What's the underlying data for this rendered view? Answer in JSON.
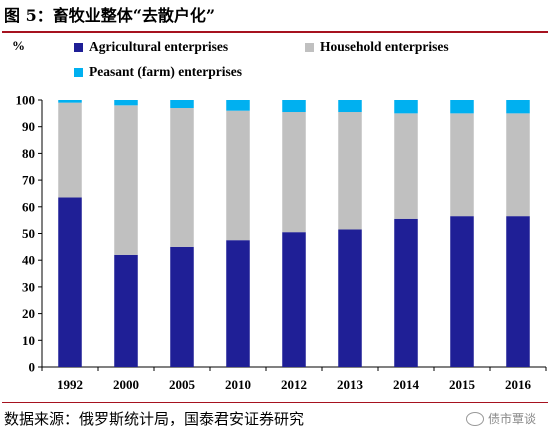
{
  "figure_title": "图 5：畜牧业整体“去散户化”",
  "source_note": "数据来源：俄罗斯统计局，国泰君安证券研究",
  "watermark": "债市覃谈",
  "chart_data": {
    "type": "bar",
    "stacked": true,
    "ylabel": "%",
    "ylim": [
      0,
      100
    ],
    "yticks": [
      0,
      10,
      20,
      30,
      40,
      50,
      60,
      70,
      80,
      90,
      100
    ],
    "categories": [
      "1992",
      "2000",
      "2005",
      "2010",
      "2012",
      "2013",
      "2014",
      "2015",
      "2016"
    ],
    "series": [
      {
        "name": "Agricultural enterprises",
        "color": "#1f1f96",
        "values": [
          63.5,
          42,
          45,
          47.5,
          50.5,
          51.5,
          55.5,
          56.5,
          56.5
        ]
      },
      {
        "name": "Household enterprises",
        "color": "#c0c0c0",
        "values": [
          35.5,
          56,
          52,
          48.5,
          45,
          44,
          39.5,
          38.5,
          38.5
        ]
      },
      {
        "name": "Peasant (farm) enterprises",
        "color": "#00b0f0",
        "values": [
          1,
          2,
          3,
          4,
          4.5,
          4.5,
          5,
          5,
          5
        ]
      }
    ],
    "legend_position": "top",
    "grid": false
  }
}
